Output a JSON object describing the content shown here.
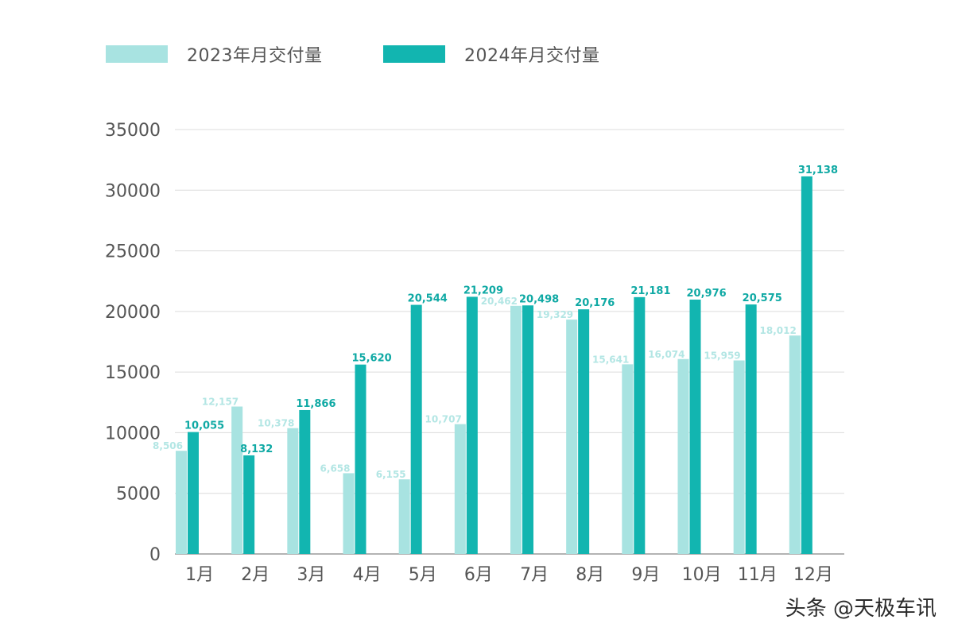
{
  "chart_data": {
    "type": "bar",
    "categories": [
      "1月",
      "2月",
      "3月",
      "4月",
      "5月",
      "6月",
      "7月",
      "8月",
      "9月",
      "10月",
      "11月",
      "12月"
    ],
    "series": [
      {
        "name": "2023年月交付量",
        "color": "#a8e3e1",
        "values": [
          8506,
          12157,
          10378,
          6658,
          6155,
          10707,
          20462,
          19329,
          15641,
          16074,
          15959,
          18012
        ],
        "labels": [
          "8,506",
          "12,157",
          "10,378",
          "6,658",
          "6,155",
          "10,707",
          "20,462",
          "19,329",
          "15,641",
          "16,074",
          "15,959",
          "18,012"
        ]
      },
      {
        "name": "2024年月交付量",
        "color": "#12b5b0",
        "values": [
          10055,
          8132,
          11866,
          15620,
          20544,
          21209,
          20498,
          20176,
          21181,
          20976,
          20575,
          31138
        ],
        "labels": [
          "10,055",
          "8,132",
          "11,866",
          "15,620",
          "20,544",
          "21,209",
          "20,498",
          "20,176",
          "21,181",
          "20,976",
          "20,575",
          "31,138"
        ]
      }
    ],
    "yticks": [
      "0",
      "5000",
      "10000",
      "15000",
      "20000",
      "25000",
      "30000",
      "35000"
    ],
    "ylim": [
      0,
      35000
    ],
    "grid": true,
    "legend": "top-left"
  },
  "legend": {
    "item_2023": "2023年月交付量",
    "item_2024": "2024年月交付量"
  },
  "watermark": "头条 @天极车讯"
}
